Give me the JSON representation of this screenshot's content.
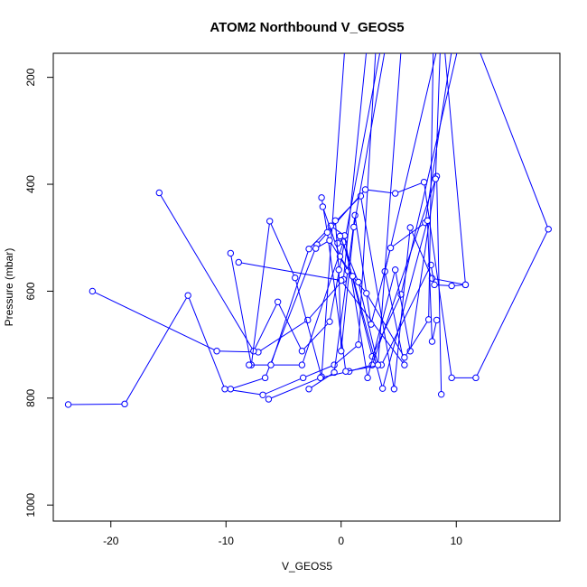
{
  "chart_data": {
    "type": "line",
    "title": "ATOM2 Northbound V_GEOS5",
    "xlabel": "V_GEOS5",
    "ylabel": "Pressure (mbar)",
    "xlim": [
      -25,
      19
    ],
    "ylim": [
      1030,
      155
    ],
    "y_reversed": true,
    "xticks": [
      -20,
      -10,
      0,
      10
    ],
    "yticks": [
      200,
      400,
      600,
      800,
      1000
    ],
    "grid": false,
    "legend": "none",
    "color": "#0000ff",
    "marker": "open-circle",
    "series": [
      {
        "x": [
          -23.7,
          -18.8,
          -13.3,
          -10.1,
          -6.8,
          -3.3,
          -0.6,
          1.5,
          3.0
        ],
        "y": [
          812,
          811,
          608,
          783,
          794,
          762,
          738,
          700,
          150
        ]
      },
      {
        "x": [
          -21.6,
          -10.8,
          -7.2,
          -2.9,
          0.2,
          2.2
        ],
        "y": [
          600,
          712,
          714,
          654,
          578,
          150
        ]
      },
      {
        "x": [
          -15.8,
          -7.6,
          -5.5,
          -3.4,
          -1.0,
          3.4
        ],
        "y": [
          416,
          712,
          620,
          712,
          657,
          150
        ]
      },
      {
        "x": [
          -9.6,
          -7.8,
          -6.2,
          -4.0,
          -1.7,
          0.3
        ],
        "y": [
          529,
          738,
          469,
          575,
          760,
          150
        ]
      },
      {
        "x": [
          -8.9,
          0.0,
          5.5,
          3.8,
          8.3
        ],
        "y": [
          546,
          580,
          738,
          563,
          150
        ]
      },
      {
        "x": [
          -9.6,
          -6.6,
          -2.1,
          2.1,
          4.7,
          7.2,
          9.6,
          11.7,
          18.0,
          12.0
        ],
        "y": [
          783,
          762,
          513,
          410,
          417,
          396,
          762,
          762,
          484,
          150
        ]
      },
      {
        "x": [
          -8.0,
          -3.4,
          0.2,
          2.7,
          5.2,
          10.1
        ],
        "y": [
          738,
          738,
          508,
          722,
          606,
          150
        ]
      },
      {
        "x": [
          -6.1,
          -2.8,
          1.7,
          4.6,
          6.0,
          7.9,
          10.8,
          9.0
        ],
        "y": [
          738,
          521,
          422,
          783,
          481,
          576,
          588,
          150
        ]
      },
      {
        "x": [
          -2.8,
          -0.6,
          1.2,
          2.6,
          4.3,
          7.3,
          9.6
        ],
        "y": [
          783,
          752,
          458,
          662,
          519,
          472,
          150
        ]
      },
      {
        "x": [
          -6.3,
          -1.8,
          0.7,
          2.7,
          8.3,
          8.7
        ],
        "y": [
          802,
          762,
          750,
          738,
          385,
          793
        ]
      },
      {
        "x": [
          -1.7,
          -1.2,
          0.4,
          3.5,
          7.8,
          8.1,
          9.6,
          10.8
        ],
        "y": [
          425,
          490,
          750,
          738,
          551,
          588,
          590,
          588
        ]
      },
      {
        "x": [
          -0.9,
          0.3,
          2.3,
          4.7,
          6.0,
          8.2,
          8.6
        ],
        "y": [
          478,
          496,
          762,
          560,
          712,
          390,
          150
        ]
      },
      {
        "x": [
          -2.2,
          -1.0,
          0.6,
          2.2,
          5.5,
          7.6,
          8.0
        ],
        "y": [
          520,
          505,
          562,
          604,
          724,
          653,
          150
        ]
      },
      {
        "x": [
          -1.6,
          -0.1,
          1.0,
          3.6,
          7.5,
          7.9,
          8.3
        ],
        "y": [
          442,
          535,
          572,
          782,
          468,
          694,
          654
        ]
      },
      {
        "x": [
          -0.3,
          -0.1,
          1.5,
          3.2,
          5.2
        ],
        "y": [
          510,
          497,
          583,
          738,
          150
        ]
      },
      {
        "x": [
          -0.5,
          -0.2,
          0.0,
          1.1,
          3.8
        ],
        "y": [
          468,
          560,
          712,
          480,
          150
        ]
      }
    ]
  }
}
